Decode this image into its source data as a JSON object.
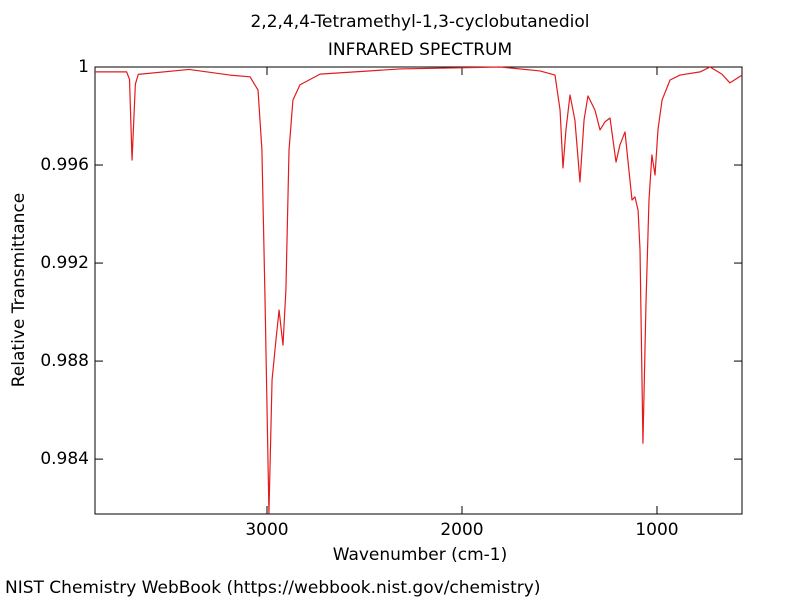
{
  "chart_data": {
    "type": "line",
    "title": "2,2,4,4-Tetramethyl-1,3-cyclobutanediol",
    "subtitle": "INFRARED SPECTRUM",
    "x_label": "Wavenumber (cm-1)",
    "y_label": "Relative Transmittance",
    "footer": "NIST Chemistry WebBook (https://webbook.nist.gov/chemistry)",
    "xlim": [
      3882,
      564
    ],
    "ylim": [
      0.98176,
      1
    ],
    "xticks": [
      3000,
      2000,
      1000
    ],
    "yticks": [
      1,
      0.996,
      0.992,
      0.988,
      0.984
    ],
    "series": [
      {
        "color": "#e41a1c",
        "x": [
          3882,
          3720,
          3705,
          3692,
          3675,
          3660,
          3400,
          3190,
          3087,
          3046,
          3026,
          3010,
          2990,
          2974,
          2954,
          2938,
          2918,
          2903,
          2887,
          2867,
          2831,
          2728,
          2318,
          1805,
          1600,
          1523,
          1497,
          1482,
          1467,
          1446,
          1421,
          1395,
          1374,
          1354,
          1318,
          1292,
          1267,
          1241,
          1210,
          1190,
          1164,
          1144,
          1128,
          1113,
          1097,
          1087,
          1072,
          1056,
          1041,
          1026,
          1010,
          995,
          974,
          933,
          882,
          779,
          728,
          667,
          626,
          564
        ],
        "values": [
          0.9998,
          0.9998,
          0.9995,
          0.9962,
          0.9993,
          0.9997,
          0.9999,
          0.99967,
          0.9996,
          0.99906,
          0.99661,
          0.99049,
          0.9818,
          0.98723,
          0.98886,
          0.99008,
          0.98865,
          0.9909,
          0.99661,
          0.99865,
          0.99927,
          0.99971,
          0.99992,
          1.0,
          0.99984,
          0.99967,
          0.99824,
          0.99588,
          0.99743,
          0.99886,
          0.99784,
          0.99531,
          0.99784,
          0.99882,
          0.99824,
          0.99743,
          0.99776,
          0.99792,
          0.99612,
          0.99682,
          0.99735,
          0.9958,
          0.99457,
          0.9947,
          0.99416,
          0.99253,
          0.98465,
          0.99049,
          0.99457,
          0.99641,
          0.99559,
          0.99743,
          0.99865,
          0.99947,
          0.99967,
          0.9998,
          1.0,
          0.99971,
          0.99935,
          0.99967
        ]
      }
    ]
  }
}
